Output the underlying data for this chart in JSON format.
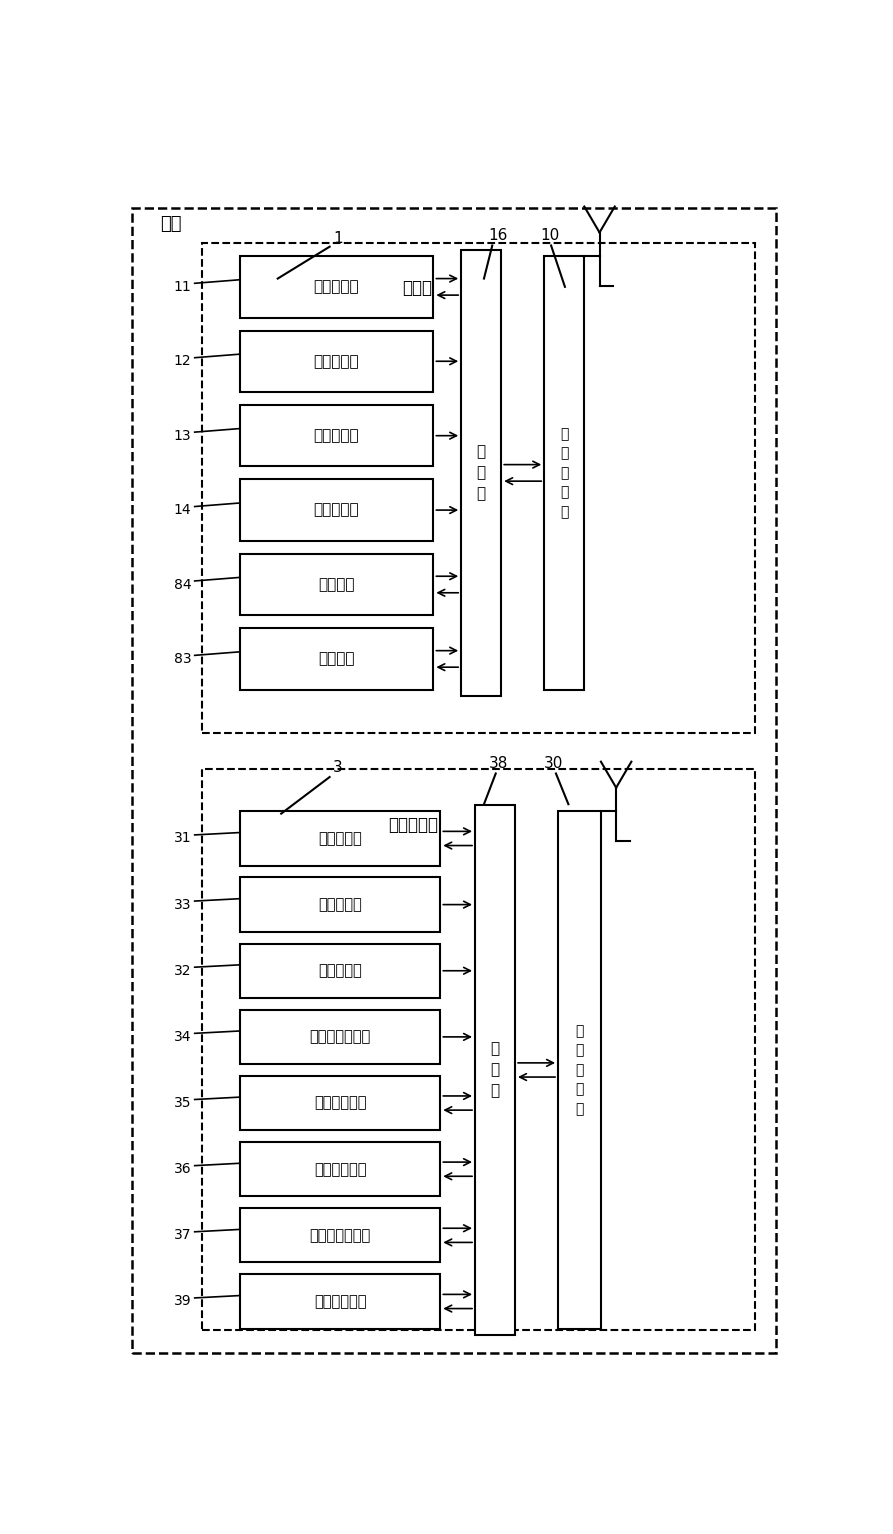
{
  "fig_width": 8.93,
  "fig_height": 15.34,
  "bg_color": "#ffffff",
  "outer_label": "组网",
  "section1": {
    "label": "1",
    "title": "空调器",
    "label_16": "16",
    "label_10": "10",
    "boxes": [
      {
        "label": "11",
        "text": "组网记录库",
        "bidir": true,
        "to_ctrl": true,
        "from_ctrl": true
      },
      {
        "label": "12",
        "text": "湿度传感器",
        "bidir": false,
        "to_ctrl": true,
        "from_ctrl": false
      },
      {
        "label": "13",
        "text": "烟雾传感器",
        "bidir": false,
        "to_ctrl": true,
        "from_ctrl": false
      },
      {
        "label": "14",
        "text": "温度传感器",
        "bidir": false,
        "to_ctrl": true,
        "from_ctrl": false
      },
      {
        "label": "84",
        "text": "人机界面",
        "bidir": true,
        "to_ctrl": true,
        "from_ctrl": true
      },
      {
        "label": "83",
        "text": "网络接口",
        "bidir": true,
        "to_ctrl": true,
        "from_ctrl": true
      }
    ],
    "ctrl_text": "主\n控\n器",
    "rf_text": "射\n频\n协\n议\n栈"
  },
  "section2": {
    "label": "3",
    "title": "空气清新机",
    "label_38": "38",
    "label_30": "30",
    "boxes": [
      {
        "label": "31",
        "text": "组网记录库",
        "bidir": true,
        "to_ctrl": true,
        "from_ctrl": true
      },
      {
        "label": "33",
        "text": "湿度传感器",
        "bidir": false,
        "to_ctrl": true,
        "from_ctrl": false
      },
      {
        "label": "32",
        "text": "烟雾传感器",
        "bidir": false,
        "to_ctrl": true,
        "from_ctrl": false
      },
      {
        "label": "34",
        "text": "空气质量传感器",
        "bidir": false,
        "to_ctrl": true,
        "from_ctrl": false
      },
      {
        "label": "35",
        "text": "加湿执行单元",
        "bidir": true,
        "to_ctrl": false,
        "from_ctrl": true
      },
      {
        "label": "36",
        "text": "除尘执行单元",
        "bidir": true,
        "to_ctrl": false,
        "from_ctrl": true
      },
      {
        "label": "37",
        "text": "离子雾发生单元",
        "bidir": true,
        "to_ctrl": false,
        "from_ctrl": true
      },
      {
        "label": "39",
        "text": "甲醛消除单元",
        "bidir": true,
        "to_ctrl": false,
        "from_ctrl": true
      }
    ],
    "ctrl_text": "主\n控\n器",
    "rf_text": "射\n频\n协\n议\n栈"
  }
}
